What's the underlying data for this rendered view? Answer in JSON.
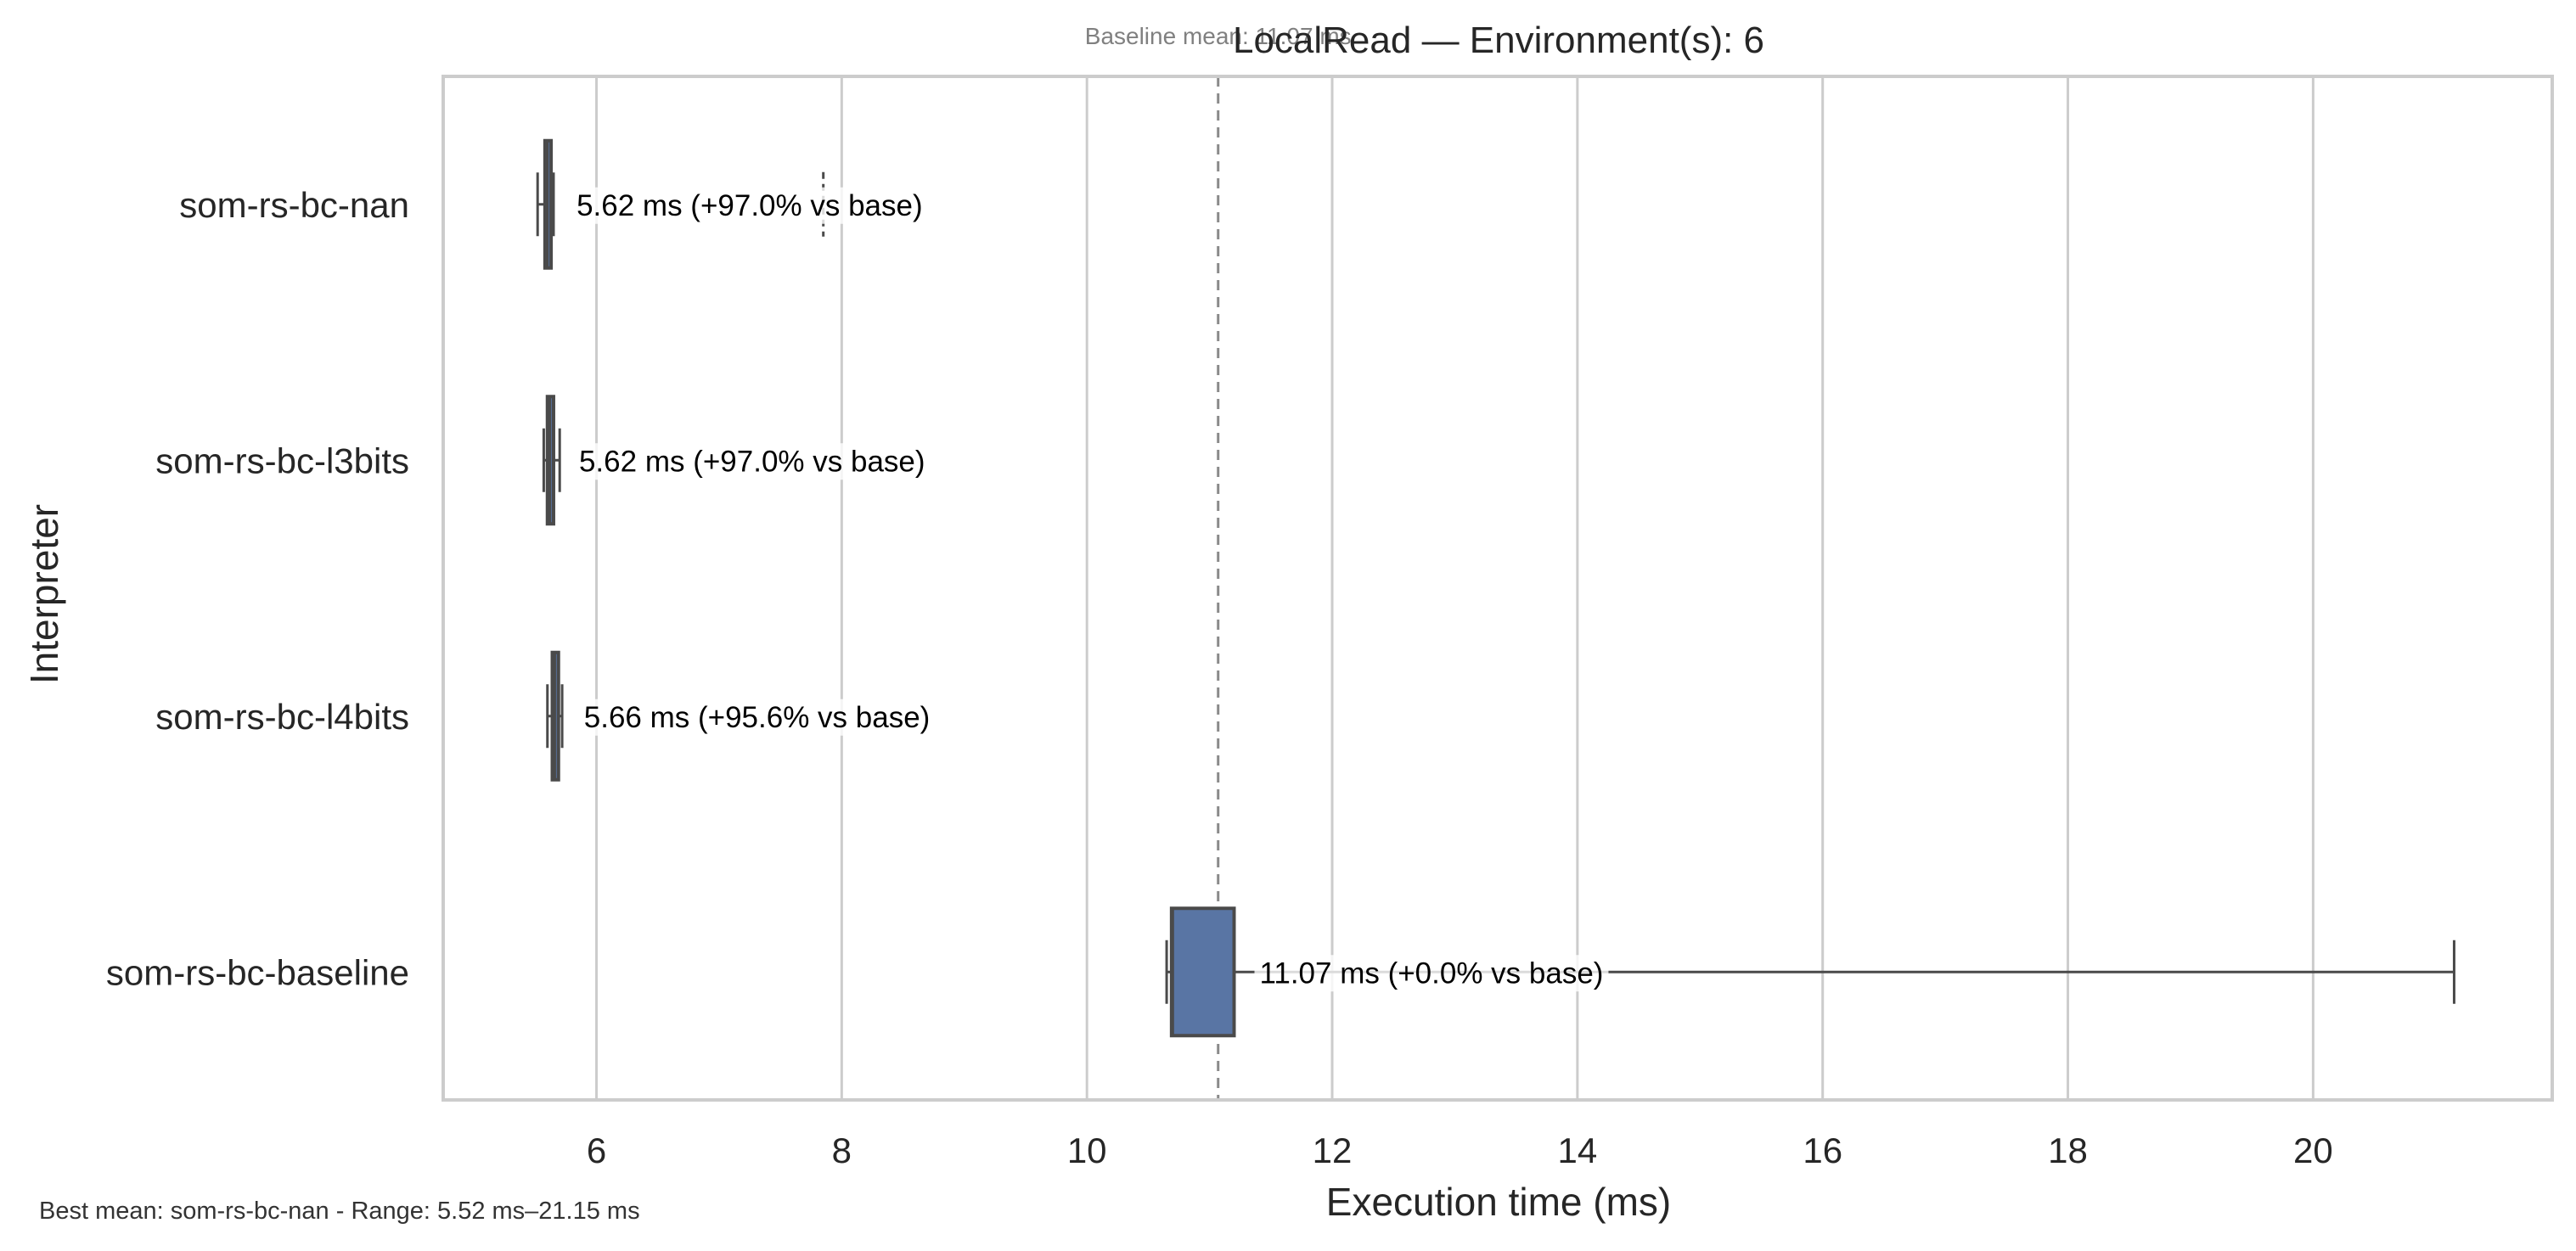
{
  "chart_data": {
    "type": "box",
    "orientation": "horizontal",
    "title": "LocalRead — Environment(s): 6",
    "xlabel": "Execution time (ms)",
    "ylabel": "Interpreter",
    "xlim": [
      4.75,
      21.95
    ],
    "xticks": [
      6,
      8,
      10,
      12,
      14,
      16,
      18,
      20
    ],
    "grid": "vertical",
    "baseline_mean": 11.07,
    "baseline_mean_label": "Baseline mean: 11.07 ms",
    "footer": "Best mean: som-rs-bc-nan - Range: 5.52 ms–21.15 ms",
    "colors": {
      "box_fill": "#5975a4",
      "box_edge": "#4a4a4a",
      "grid": "#cccccc",
      "baseline_line": "#8a8a8a",
      "frame": "#cccccc"
    },
    "categories": [
      "som-rs-bc-nan",
      "som-rs-bc-l3bits",
      "som-rs-bc-l4bits",
      "som-rs-bc-baseline"
    ],
    "boxes": [
      {
        "name": "som-rs-bc-nan",
        "whisker_low": 5.52,
        "q1": 5.58,
        "median": 5.6,
        "q3": 5.63,
        "whisker_high": 5.65,
        "outliers": [
          7.85
        ],
        "mean": 5.62,
        "label": "5.62 ms  (+97.0% vs base)"
      },
      {
        "name": "som-rs-bc-l3bits",
        "whisker_low": 5.57,
        "q1": 5.6,
        "median": 5.62,
        "q3": 5.65,
        "whisker_high": 5.7,
        "outliers": [],
        "mean": 5.62,
        "label": "5.62 ms  (+97.0% vs base)"
      },
      {
        "name": "som-rs-bc-l4bits",
        "whisker_low": 5.6,
        "q1": 5.64,
        "median": 5.66,
        "q3": 5.69,
        "whisker_high": 5.72,
        "outliers": [],
        "mean": 5.66,
        "label": "5.66 ms  (+95.6% vs base)"
      },
      {
        "name": "som-rs-bc-baseline",
        "whisker_low": 10.65,
        "q1": 10.69,
        "median": 10.7,
        "q3": 11.2,
        "whisker_high": 21.15,
        "outliers": [],
        "mean": 11.07,
        "label": "11.07 ms  (+0.0% vs base)"
      }
    ]
  }
}
